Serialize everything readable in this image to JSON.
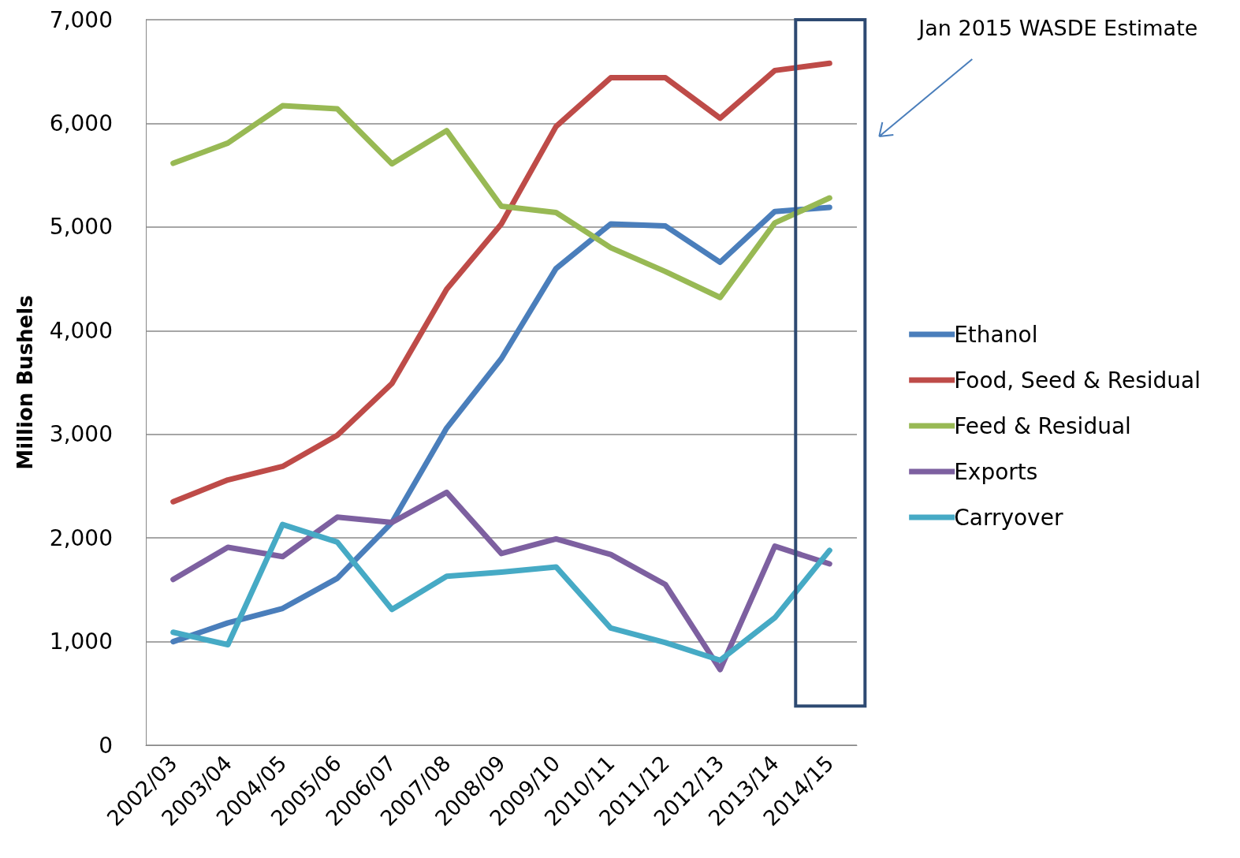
{
  "chart_data": {
    "type": "line",
    "ylabel": "Million Bushels",
    "categories": [
      "2002/03",
      "2003/04",
      "2004/05",
      "2005/06",
      "2006/07",
      "2007/08",
      "2008/09",
      "2009/10",
      "2010/11",
      "2011/12",
      "2012/13",
      "2013/14",
      "2014/15"
    ],
    "series": [
      {
        "name": "Ethanol",
        "color": "#4a7ebb",
        "values": [
          1000,
          1180,
          1320,
          1610,
          2150,
          3060,
          3730,
          4600,
          5030,
          5010,
          4660,
          5150,
          5190
        ]
      },
      {
        "name": "Food, Seed & Residual",
        "color": "#be4b48",
        "values": [
          2350,
          2560,
          2690,
          2990,
          3490,
          4400,
          5030,
          5970,
          6440,
          6440,
          6050,
          6510,
          6580
        ]
      },
      {
        "name": "Feed & Residual",
        "color": "#98b954",
        "values": [
          5615,
          5810,
          6170,
          6140,
          5610,
          5930,
          5200,
          5140,
          4800,
          4570,
          4320,
          5040,
          5280
        ]
      },
      {
        "name": "Exports",
        "color": "#7d60a0",
        "values": [
          1600,
          1910,
          1820,
          2200,
          2150,
          2440,
          1850,
          1990,
          1840,
          1550,
          730,
          1920,
          1750
        ]
      },
      {
        "name": "Carryover",
        "color": "#46aac5",
        "values": [
          1090,
          970,
          2130,
          1960,
          1310,
          1630,
          1670,
          1720,
          1130,
          990,
          820,
          1230,
          1880
        ]
      }
    ],
    "ylim": [
      0,
      7000
    ],
    "yticks": [
      0,
      {
        "value": 1000,
        "label": "1,000"
      },
      {
        "value": 2000,
        "label": "2,000"
      },
      {
        "value": 3000,
        "label": "3,000"
      },
      {
        "value": 4000,
        "label": "4,000"
      },
      {
        "value": 5000,
        "label": "5,000"
      },
      {
        "value": 6000,
        "label": "6,000"
      },
      {
        "value": 7000,
        "label": "7,000"
      }
    ],
    "grid": "y",
    "legend": "right",
    "marker": "none",
    "line_style": "solid",
    "annotations": [
      "Jan 2015 WASDE Estimate"
    ]
  }
}
